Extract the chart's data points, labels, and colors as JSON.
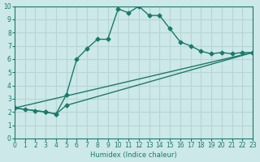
{
  "xlabel": "Humidex (Indice chaleur)",
  "ylabel": "",
  "xlim": [
    0,
    23
  ],
  "ylim": [
    0,
    10
  ],
  "xticks": [
    0,
    1,
    2,
    3,
    4,
    5,
    6,
    7,
    8,
    9,
    10,
    11,
    12,
    13,
    14,
    15,
    16,
    17,
    18,
    19,
    20,
    21,
    22,
    23
  ],
  "yticks": [
    0,
    1,
    2,
    3,
    4,
    5,
    6,
    7,
    8,
    9,
    10
  ],
  "bg_color": "#cce8e8",
  "grid_color": "#b8d4d4",
  "line_color": "#1a7a6a",
  "line1_x": [
    0,
    1,
    2,
    3,
    4,
    5,
    6,
    7,
    8,
    9,
    10,
    11,
    12,
    13,
    14,
    15,
    16,
    17,
    18,
    19,
    20,
    21,
    22,
    23
  ],
  "line1_y": [
    2.3,
    2.2,
    2.1,
    2.0,
    1.85,
    3.3,
    6.0,
    6.8,
    7.5,
    7.5,
    9.8,
    9.5,
    10.0,
    9.3,
    9.3,
    8.3,
    7.3,
    7.0,
    6.6,
    6.4,
    6.5,
    6.4,
    6.5,
    6.5
  ],
  "line2_x": [
    0,
    23
  ],
  "line2_y": [
    2.3,
    6.5
  ],
  "line3_x": [
    0,
    3,
    4,
    5,
    23
  ],
  "line3_y": [
    2.3,
    2.0,
    1.85,
    2.5,
    6.5
  ]
}
